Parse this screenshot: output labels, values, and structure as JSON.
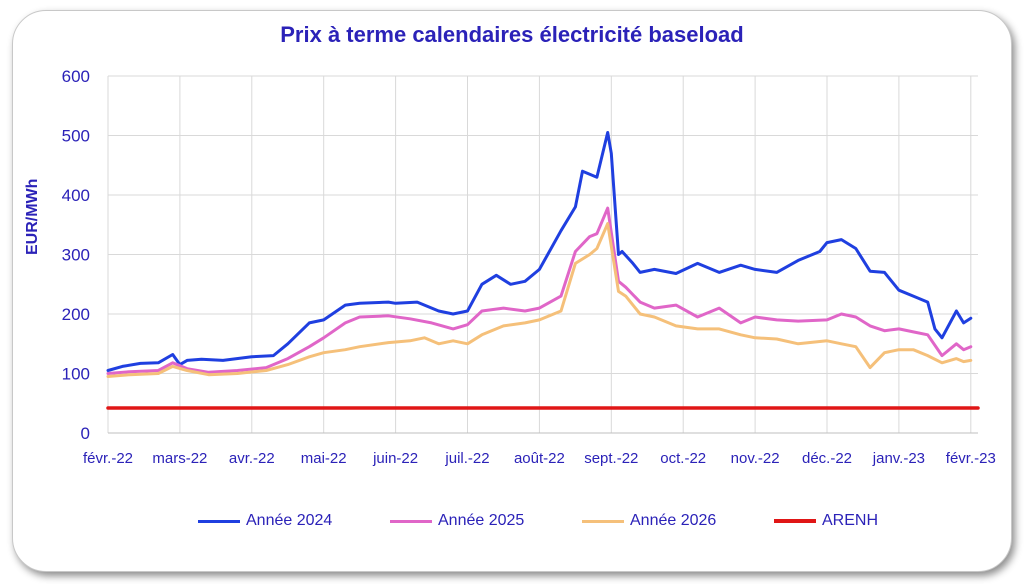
{
  "chart_data": {
    "type": "line",
    "title": "Prix à terme calendaires électricité baseload",
    "xlabel": "",
    "ylabel": "EUR/MWh",
    "ylim": [
      0,
      600
    ],
    "yticks": [
      0,
      100,
      200,
      300,
      400,
      500,
      600
    ],
    "xtick_labels": [
      "févr.-22",
      "mars-22",
      "avr.-22",
      "mai-22",
      "juin-22",
      "juil.-22",
      "août-22",
      "sept.-22",
      "oct.-22",
      "nov.-22",
      "déc.-22",
      "janv.-23",
      "févr.-23"
    ],
    "x_unit": "months since févr.-22",
    "grid": true,
    "legend_position": "bottom",
    "series": [
      {
        "name": "Année 2024",
        "color": "#1f3fe0",
        "x": [
          0,
          0.2,
          0.45,
          0.7,
          0.9,
          1.0,
          1.1,
          1.3,
          1.6,
          2.0,
          2.3,
          2.5,
          2.8,
          3.0,
          3.3,
          3.5,
          3.9,
          4.0,
          4.3,
          4.6,
          4.8,
          5.0,
          5.2,
          5.4,
          5.6,
          5.8,
          6.0,
          6.3,
          6.5,
          6.6,
          6.8,
          6.95,
          7.0,
          7.1,
          7.15,
          7.3,
          7.4,
          7.6,
          7.9,
          8.2,
          8.5,
          8.8,
          9.0,
          9.3,
          9.6,
          9.9,
          10.0,
          10.2,
          10.4,
          10.6,
          10.8,
          11.0,
          11.2,
          11.4,
          11.5,
          11.6,
          11.8,
          11.9,
          12.0
        ],
        "y": [
          105,
          112,
          117,
          118,
          132,
          115,
          122,
          124,
          122,
          128,
          130,
          150,
          185,
          190,
          215,
          218,
          220,
          218,
          220,
          205,
          200,
          205,
          250,
          265,
          250,
          255,
          275,
          340,
          380,
          440,
          430,
          505,
          470,
          300,
          305,
          285,
          270,
          275,
          268,
          285,
          270,
          282,
          275,
          270,
          290,
          305,
          320,
          325,
          310,
          272,
          270,
          240,
          230,
          220,
          175,
          160,
          205,
          185,
          193
        ]
      },
      {
        "name": "Année 2025",
        "color": "#e066c8",
        "x": [
          0,
          0.3,
          0.7,
          0.9,
          1.1,
          1.4,
          1.8,
          2.2,
          2.5,
          2.8,
          3.0,
          3.3,
          3.5,
          3.9,
          4.2,
          4.5,
          4.8,
          5.0,
          5.2,
          5.5,
          5.8,
          6.0,
          6.3,
          6.5,
          6.7,
          6.8,
          6.95,
          7.1,
          7.2,
          7.4,
          7.6,
          7.9,
          8.2,
          8.5,
          8.8,
          9.0,
          9.3,
          9.6,
          10.0,
          10.2,
          10.4,
          10.6,
          10.8,
          11.0,
          11.2,
          11.4,
          11.6,
          11.8,
          11.9,
          12.0
        ],
        "y": [
          100,
          103,
          105,
          118,
          108,
          102,
          105,
          110,
          125,
          145,
          160,
          185,
          195,
          197,
          192,
          185,
          175,
          182,
          205,
          210,
          205,
          210,
          230,
          305,
          330,
          335,
          378,
          255,
          245,
          220,
          210,
          215,
          195,
          210,
          185,
          195,
          190,
          188,
          190,
          200,
          195,
          180,
          172,
          175,
          170,
          165,
          130,
          150,
          140,
          145
        ]
      },
      {
        "name": "Année 2026",
        "color": "#f5c07a",
        "x": [
          0,
          0.3,
          0.7,
          0.9,
          1.1,
          1.4,
          1.8,
          2.2,
          2.5,
          2.8,
          3.0,
          3.3,
          3.5,
          3.9,
          4.2,
          4.4,
          4.6,
          4.8,
          5.0,
          5.2,
          5.5,
          5.8,
          6.0,
          6.3,
          6.5,
          6.7,
          6.8,
          6.95,
          7.1,
          7.2,
          7.4,
          7.6,
          7.9,
          8.2,
          8.5,
          8.8,
          9.0,
          9.3,
          9.6,
          10.0,
          10.2,
          10.4,
          10.6,
          10.8,
          11.0,
          11.2,
          11.4,
          11.6,
          11.8,
          11.9,
          12.0
        ],
        "y": [
          95,
          98,
          100,
          112,
          105,
          98,
          100,
          105,
          115,
          128,
          135,
          140,
          145,
          152,
          155,
          160,
          150,
          155,
          150,
          165,
          180,
          185,
          190,
          205,
          285,
          300,
          310,
          352,
          238,
          230,
          200,
          195,
          180,
          175,
          175,
          165,
          160,
          158,
          150,
          155,
          150,
          145,
          110,
          135,
          140,
          140,
          130,
          118,
          125,
          120,
          122
        ]
      },
      {
        "name": "ARENH",
        "color": "#e01616",
        "x": [
          0,
          12.1
        ],
        "y": [
          42,
          42
        ]
      }
    ]
  }
}
